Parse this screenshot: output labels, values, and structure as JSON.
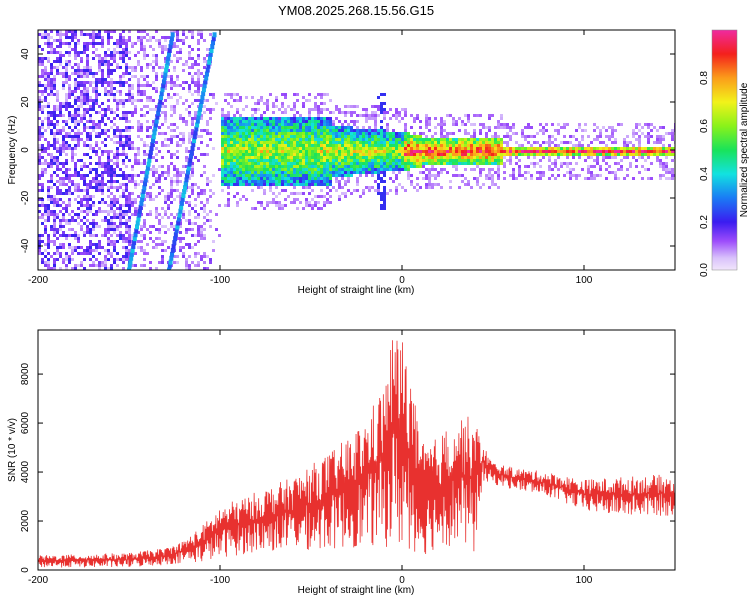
{
  "title": "YM08.2025.268.15.56.G15",
  "chart_data": [
    {
      "type": "heatmap",
      "title": "",
      "xlabel": "Height of straight line (km)",
      "ylabel": "Frequency (Hz)",
      "xlim": [
        -200,
        150
      ],
      "ylim": [
        -50,
        50
      ],
      "xticks": [
        -200,
        -100,
        0,
        100
      ],
      "yticks": [
        -40,
        -20,
        0,
        20,
        40
      ],
      "colorbar": {
        "label": "Normalized spectral amplitude",
        "range": [
          0,
          1
        ],
        "ticks": [
          "0.0",
          "0.2",
          "0.4",
          "0.6",
          "0.8"
        ]
      },
      "features": [
        {
          "name": "noise band",
          "x_range": [
            -200,
            -100
          ],
          "y_range": [
            -50,
            50
          ],
          "amplitude": 0.1
        },
        {
          "name": "diagonal streak A",
          "from": [
            -150,
            -50
          ],
          "to": [
            -126,
            48
          ],
          "amplitude": 0.3
        },
        {
          "name": "diagonal streak B",
          "from": [
            -128,
            -50
          ],
          "to": [
            -103,
            48
          ],
          "amplitude": 0.3
        },
        {
          "name": "signal band",
          "x_range": [
            -100,
            150
          ],
          "center_y": 0,
          "amplitude": 0.9
        }
      ]
    },
    {
      "type": "line",
      "title": "",
      "xlabel": "Height of straight line (km)",
      "ylabel": "SNR (10 * v/v)",
      "xlim": [
        -200,
        150
      ],
      "ylim": [
        0,
        9800
      ],
      "xticks": [
        -200,
        -100,
        0,
        100
      ],
      "yticks": [
        0,
        2000,
        4000,
        6000,
        8000
      ],
      "series": [
        {
          "name": "SNR",
          "color": "#e8312f",
          "envelope_x": [
            -200,
            -150,
            -130,
            -120,
            -110,
            -100,
            -80,
            -60,
            -40,
            -30,
            -20,
            -10,
            -5,
            0,
            5,
            10,
            20,
            30,
            40,
            44,
            50,
            60,
            80,
            100,
            120,
            140,
            150
          ],
          "envelope_upper": [
            600,
            700,
            900,
            1200,
            1800,
            2600,
            3200,
            3800,
            4800,
            5400,
            6200,
            7600,
            9800,
            9600,
            8000,
            5200,
            5400,
            6400,
            6200,
            5200,
            4400,
            4200,
            4000,
            3700,
            3800,
            3900,
            3800
          ],
          "envelope_lower": [
            100,
            100,
            200,
            300,
            300,
            500,
            700,
            800,
            800,
            900,
            900,
            900,
            1000,
            700,
            800,
            500,
            900,
            1000,
            600,
            3500,
            3500,
            3300,
            3000,
            2400,
            2200,
            2200,
            2200
          ]
        }
      ]
    }
  ]
}
